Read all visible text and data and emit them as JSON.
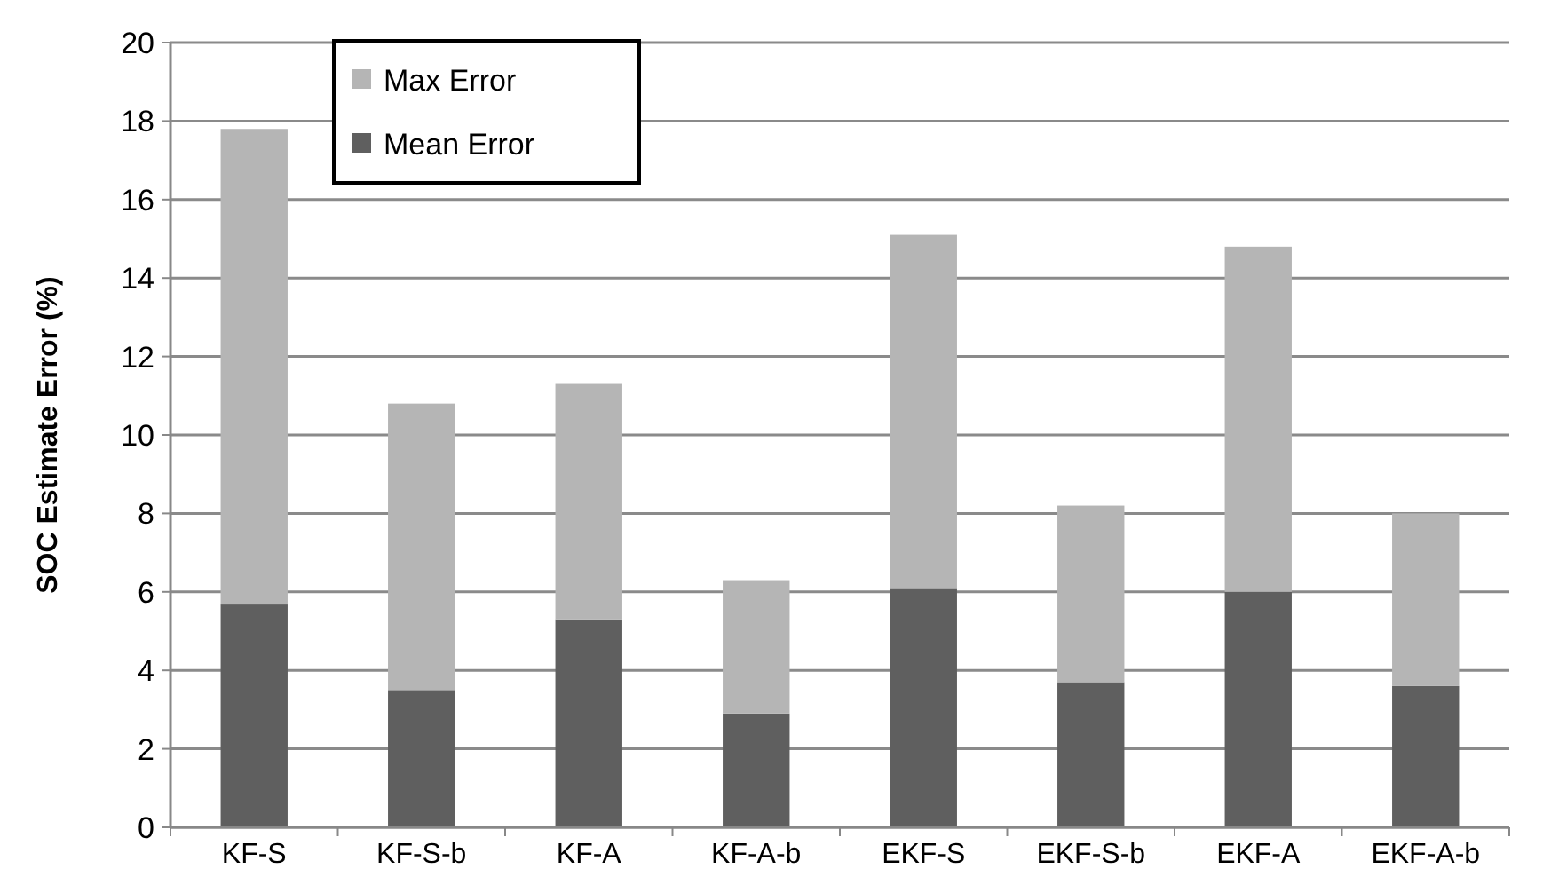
{
  "chart_data": {
    "type": "bar",
    "ylabel": "SOC Estimate Error (%)",
    "categories": [
      "KF-S",
      "KF-S-b",
      "KF-A",
      "KF-A-b",
      "EKF-S",
      "EKF-S-b",
      "EKF-A",
      "EKF-A-b"
    ],
    "stacked": true,
    "series": [
      {
        "name": "Mean Error",
        "color": "#5f5f5f",
        "values": [
          5.7,
          3.5,
          5.3,
          2.9,
          6.1,
          3.7,
          6.0,
          3.6
        ]
      },
      {
        "name": "Max Error",
        "color": "#b5b5b5",
        "values": [
          12.1,
          7.3,
          6.0,
          3.4,
          9.0,
          4.5,
          8.8,
          4.4
        ]
      }
    ],
    "ylim": [
      0,
      20
    ],
    "yticks": [
      0,
      2,
      4,
      6,
      8,
      10,
      12,
      14,
      16,
      18,
      20
    ],
    "grid": "y",
    "legend": "top left"
  }
}
